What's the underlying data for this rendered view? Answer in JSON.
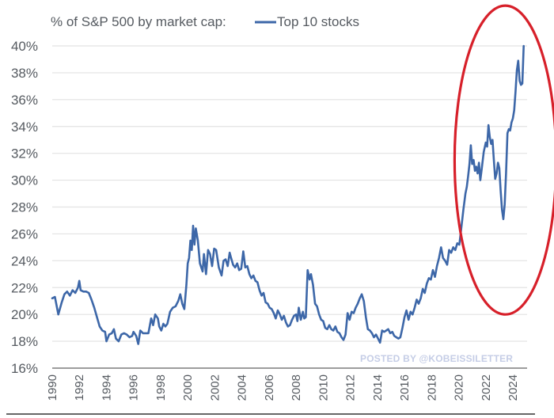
{
  "chart_data": {
    "type": "line",
    "title": "% of S&P 500 by market cap:",
    "legend": [
      {
        "name": "Top 10 stocks",
        "color": "#3d67a8"
      }
    ],
    "legend_placement": "top-inline-with-title",
    "xlabel": "",
    "ylabel": "",
    "ylim": [
      16,
      40
    ],
    "xlim": [
      1990,
      2024.8
    ],
    "grid": "horizontal",
    "yticks": [
      16,
      18,
      20,
      22,
      24,
      26,
      28,
      30,
      32,
      34,
      36,
      38,
      40
    ],
    "ytick_labels": [
      "16%",
      "18%",
      "20%",
      "22%",
      "24%",
      "26%",
      "28%",
      "30%",
      "32%",
      "34%",
      "36%",
      "38%",
      "40%"
    ],
    "xticks": [
      1990,
      1992,
      1994,
      1996,
      1998,
      2000,
      2002,
      2004,
      2006,
      2008,
      2010,
      2012,
      2014,
      2016,
      2018,
      2020,
      2022,
      2024
    ],
    "xtick_labels": [
      "1990",
      "1992",
      "1994",
      "1996",
      "1998",
      "2000",
      "2002",
      "2004",
      "2006",
      "2008",
      "2010",
      "2012",
      "2014",
      "2016",
      "2018",
      "2020",
      "2022",
      "2024"
    ],
    "series": [
      {
        "name": "Top 10 stocks",
        "color": "#3d67a8",
        "points": [
          [
            1990.0,
            21.2
          ],
          [
            1990.2,
            21.3
          ],
          [
            1990.45,
            20.0
          ],
          [
            1990.7,
            20.9
          ],
          [
            1990.9,
            21.5
          ],
          [
            1991.1,
            21.7
          ],
          [
            1991.3,
            21.4
          ],
          [
            1991.5,
            21.8
          ],
          [
            1991.7,
            21.6
          ],
          [
            1991.9,
            22.0
          ],
          [
            1992.0,
            22.5
          ],
          [
            1992.1,
            21.8
          ],
          [
            1992.3,
            21.7
          ],
          [
            1992.5,
            21.7
          ],
          [
            1992.7,
            21.6
          ],
          [
            1992.9,
            21.1
          ],
          [
            1993.1,
            20.5
          ],
          [
            1993.3,
            19.8
          ],
          [
            1993.5,
            19.1
          ],
          [
            1993.7,
            18.8
          ],
          [
            1993.9,
            18.7
          ],
          [
            1994.0,
            18.0
          ],
          [
            1994.2,
            18.5
          ],
          [
            1994.4,
            18.6
          ],
          [
            1994.55,
            18.9
          ],
          [
            1994.7,
            18.2
          ],
          [
            1994.9,
            18.0
          ],
          [
            1995.1,
            18.5
          ],
          [
            1995.3,
            18.6
          ],
          [
            1995.5,
            18.5
          ],
          [
            1995.7,
            18.3
          ],
          [
            1995.9,
            18.4
          ],
          [
            1996.0,
            18.7
          ],
          [
            1996.2,
            18.4
          ],
          [
            1996.35,
            17.8
          ],
          [
            1996.5,
            18.8
          ],
          [
            1996.7,
            18.6
          ],
          [
            1996.9,
            18.6
          ],
          [
            1997.1,
            18.6
          ],
          [
            1997.3,
            19.7
          ],
          [
            1997.45,
            19.2
          ],
          [
            1997.6,
            20.0
          ],
          [
            1997.8,
            19.7
          ],
          [
            1997.9,
            19.1
          ],
          [
            1998.05,
            18.8
          ],
          [
            1998.2,
            19.3
          ],
          [
            1998.35,
            19.1
          ],
          [
            1998.5,
            19.3
          ],
          [
            1998.7,
            20.2
          ],
          [
            1998.9,
            20.5
          ],
          [
            1999.1,
            20.6
          ],
          [
            1999.3,
            21.0
          ],
          [
            1999.45,
            21.5
          ],
          [
            1999.6,
            20.8
          ],
          [
            1999.75,
            20.4
          ],
          [
            1999.9,
            22.2
          ],
          [
            2000.0,
            23.8
          ],
          [
            2000.1,
            24.2
          ],
          [
            2000.2,
            25.5
          ],
          [
            2000.3,
            24.8
          ],
          [
            2000.4,
            26.6
          ],
          [
            2000.5,
            25.2
          ],
          [
            2000.6,
            26.4
          ],
          [
            2000.75,
            25.5
          ],
          [
            2000.9,
            23.8
          ],
          [
            2001.1,
            23.2
          ],
          [
            2001.2,
            24.5
          ],
          [
            2001.35,
            23.0
          ],
          [
            2001.5,
            24.8
          ],
          [
            2001.65,
            24.5
          ],
          [
            2001.8,
            23.6
          ],
          [
            2001.95,
            24.9
          ],
          [
            2002.1,
            24.8
          ],
          [
            2002.3,
            23.5
          ],
          [
            2002.5,
            22.9
          ],
          [
            2002.65,
            24.0
          ],
          [
            2002.8,
            24.1
          ],
          [
            2002.95,
            23.6
          ],
          [
            2003.1,
            24.6
          ],
          [
            2003.2,
            24.2
          ],
          [
            2003.35,
            23.7
          ],
          [
            2003.5,
            23.5
          ],
          [
            2003.65,
            23.8
          ],
          [
            2003.8,
            23.3
          ],
          [
            2003.95,
            23.4
          ],
          [
            2004.1,
            24.7
          ],
          [
            2004.25,
            23.5
          ],
          [
            2004.4,
            23.6
          ],
          [
            2004.55,
            23.0
          ],
          [
            2004.7,
            22.7
          ],
          [
            2004.85,
            22.9
          ],
          [
            2005.0,
            22.5
          ],
          [
            2005.15,
            22.4
          ],
          [
            2005.3,
            21.8
          ],
          [
            2005.45,
            21.4
          ],
          [
            2005.6,
            21.6
          ],
          [
            2005.75,
            20.9
          ],
          [
            2005.9,
            20.8
          ],
          [
            2006.05,
            20.5
          ],
          [
            2006.2,
            20.4
          ],
          [
            2006.35,
            20.1
          ],
          [
            2006.5,
            19.7
          ],
          [
            2006.65,
            20.3
          ],
          [
            2006.8,
            20.0
          ],
          [
            2006.95,
            19.6
          ],
          [
            2007.1,
            19.9
          ],
          [
            2007.25,
            19.4
          ],
          [
            2007.4,
            19.1
          ],
          [
            2007.55,
            19.2
          ],
          [
            2007.7,
            19.6
          ],
          [
            2007.85,
            19.9
          ],
          [
            2008.0,
            20.0
          ],
          [
            2008.1,
            19.5
          ],
          [
            2008.2,
            20.5
          ],
          [
            2008.35,
            19.6
          ],
          [
            2008.5,
            20.2
          ],
          [
            2008.6,
            19.7
          ],
          [
            2008.72,
            19.8
          ],
          [
            2008.85,
            23.3
          ],
          [
            2009.0,
            22.6
          ],
          [
            2009.1,
            23.0
          ],
          [
            2009.25,
            22.2
          ],
          [
            2009.4,
            20.8
          ],
          [
            2009.55,
            20.6
          ],
          [
            2009.7,
            20.0
          ],
          [
            2009.85,
            19.6
          ],
          [
            2010.0,
            19.5
          ],
          [
            2010.15,
            19.0
          ],
          [
            2010.3,
            18.9
          ],
          [
            2010.45,
            19.2
          ],
          [
            2010.6,
            18.9
          ],
          [
            2010.75,
            18.8
          ],
          [
            2010.9,
            19.1
          ],
          [
            2011.05,
            18.7
          ],
          [
            2011.2,
            18.6
          ],
          [
            2011.35,
            18.3
          ],
          [
            2011.5,
            18.1
          ],
          [
            2011.65,
            18.5
          ],
          [
            2011.8,
            20.1
          ],
          [
            2011.95,
            19.6
          ],
          [
            2012.1,
            20.2
          ],
          [
            2012.25,
            20.1
          ],
          [
            2012.4,
            20.5
          ],
          [
            2012.55,
            20.8
          ],
          [
            2012.7,
            21.2
          ],
          [
            2012.85,
            21.5
          ],
          [
            2013.0,
            21.0
          ],
          [
            2013.15,
            19.8
          ],
          [
            2013.3,
            18.9
          ],
          [
            2013.45,
            18.8
          ],
          [
            2013.6,
            18.6
          ],
          [
            2013.75,
            18.3
          ],
          [
            2013.9,
            18.5
          ],
          [
            2014.05,
            18.2
          ],
          [
            2014.2,
            17.9
          ],
          [
            2014.35,
            18.8
          ],
          [
            2014.5,
            18.7
          ],
          [
            2014.65,
            18.8
          ],
          [
            2014.8,
            18.9
          ],
          [
            2014.95,
            18.6
          ],
          [
            2015.1,
            18.7
          ],
          [
            2015.25,
            18.4
          ],
          [
            2015.4,
            18.3
          ],
          [
            2015.55,
            18.2
          ],
          [
            2015.7,
            18.3
          ],
          [
            2015.85,
            19.0
          ],
          [
            2016.0,
            19.8
          ],
          [
            2016.15,
            20.3
          ],
          [
            2016.3,
            19.6
          ],
          [
            2016.45,
            20.2
          ],
          [
            2016.6,
            20.0
          ],
          [
            2016.75,
            20.5
          ],
          [
            2016.9,
            21.1
          ],
          [
            2017.05,
            20.8
          ],
          [
            2017.2,
            21.2
          ],
          [
            2017.35,
            21.9
          ],
          [
            2017.5,
            21.6
          ],
          [
            2017.65,
            22.3
          ],
          [
            2017.8,
            22.7
          ],
          [
            2017.95,
            22.6
          ],
          [
            2018.1,
            23.3
          ],
          [
            2018.25,
            22.8
          ],
          [
            2018.4,
            23.6
          ],
          [
            2018.55,
            24.2
          ],
          [
            2018.7,
            25.0
          ],
          [
            2018.85,
            24.2
          ],
          [
            2019.0,
            24.0
          ],
          [
            2019.15,
            23.7
          ],
          [
            2019.3,
            24.8
          ],
          [
            2019.45,
            24.6
          ],
          [
            2019.6,
            25.0
          ],
          [
            2019.75,
            24.8
          ],
          [
            2019.9,
            25.3
          ],
          [
            2020.05,
            25.2
          ],
          [
            2020.2,
            26.5
          ],
          [
            2020.35,
            27.8
          ],
          [
            2020.5,
            29.0
          ],
          [
            2020.6,
            29.5
          ],
          [
            2020.7,
            30.3
          ],
          [
            2020.8,
            31.2
          ],
          [
            2020.9,
            32.6
          ],
          [
            2021.0,
            31.2
          ],
          [
            2021.1,
            31.5
          ],
          [
            2021.2,
            30.7
          ],
          [
            2021.3,
            31.0
          ],
          [
            2021.4,
            30.5
          ],
          [
            2021.5,
            31.3
          ],
          [
            2021.6,
            30.0
          ],
          [
            2021.7,
            30.8
          ],
          [
            2021.85,
            32.1
          ],
          [
            2022.0,
            32.8
          ],
          [
            2022.1,
            32.5
          ],
          [
            2022.2,
            34.1
          ],
          [
            2022.3,
            33.2
          ],
          [
            2022.4,
            32.7
          ],
          [
            2022.5,
            33.0
          ],
          [
            2022.6,
            31.5
          ],
          [
            2022.7,
            30.1
          ],
          [
            2022.8,
            30.5
          ],
          [
            2022.9,
            31.3
          ],
          [
            2023.0,
            30.9
          ],
          [
            2023.1,
            29.2
          ],
          [
            2023.2,
            27.8
          ],
          [
            2023.3,
            27.1
          ],
          [
            2023.4,
            28.2
          ],
          [
            2023.5,
            30.5
          ],
          [
            2023.6,
            33.5
          ],
          [
            2023.7,
            33.8
          ],
          [
            2023.8,
            33.7
          ],
          [
            2023.9,
            34.3
          ],
          [
            2024.0,
            34.6
          ],
          [
            2024.1,
            35.2
          ],
          [
            2024.2,
            36.6
          ],
          [
            2024.3,
            38.2
          ],
          [
            2024.4,
            38.9
          ],
          [
            2024.5,
            37.4
          ],
          [
            2024.6,
            37.1
          ],
          [
            2024.7,
            37.2
          ],
          [
            2024.8,
            40.0
          ]
        ]
      }
    ],
    "annotations": [
      {
        "type": "ellipse",
        "color": "#d7202a",
        "description": "red circle highlighting 2020-2024 surge",
        "x_range": [
          2019.7,
          2027.2
        ],
        "y_range": [
          20.0,
          43.0
        ]
      },
      {
        "type": "watermark",
        "text": "POSTED BY @KOBEISSILETTER",
        "color": "#c5cde6",
        "placement": "bottom-right"
      }
    ]
  }
}
